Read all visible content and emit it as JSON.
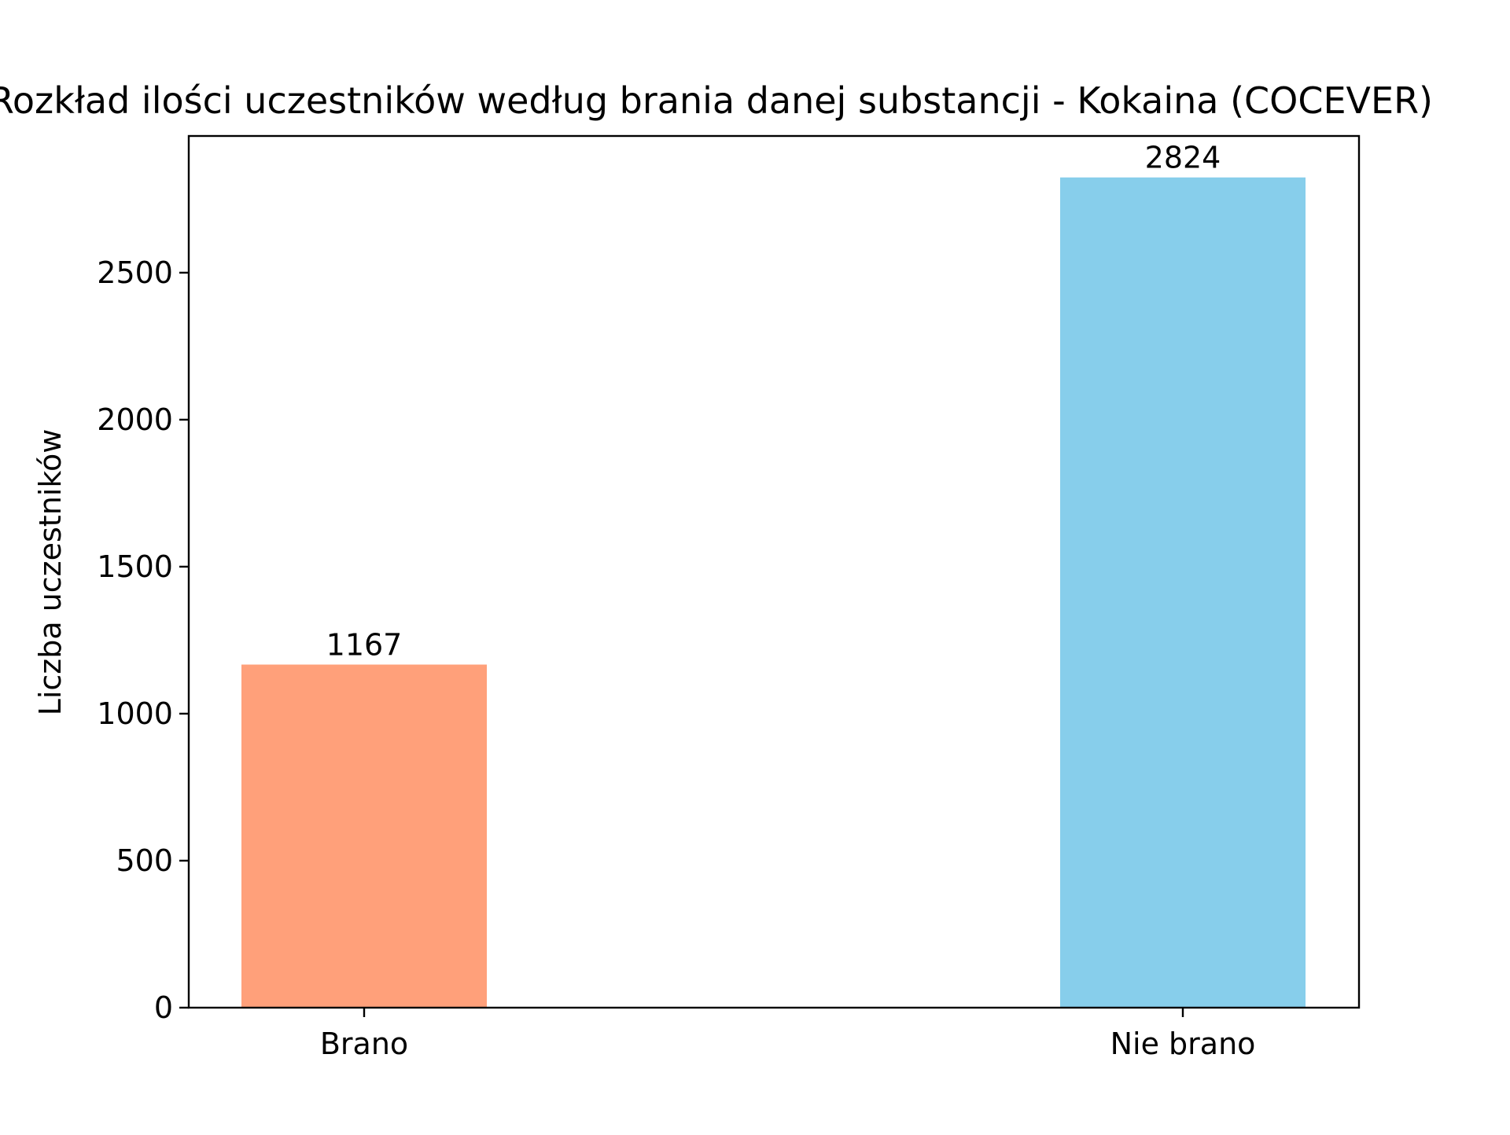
{
  "chart_data": {
    "type": "bar",
    "title": "Rozkład ilości uczestników według brania danej substancji - Kokaina (COCEVER)",
    "xlabel": "",
    "ylabel": "Liczba uczestników",
    "categories": [
      "Brano",
      "Nie brano"
    ],
    "values": [
      1167,
      2824
    ],
    "data_labels": [
      "1167",
      "2824"
    ],
    "bar_colors": [
      "#FFA07A",
      "#87CEEB"
    ],
    "ylim": [
      0,
      2965
    ],
    "yticks": [
      0,
      500,
      1000,
      1500,
      2000,
      2500
    ],
    "ytick_labels": [
      "0",
      "500",
      "1000",
      "1500",
      "2000",
      "2500"
    ],
    "grid": false,
    "legend": "none"
  }
}
